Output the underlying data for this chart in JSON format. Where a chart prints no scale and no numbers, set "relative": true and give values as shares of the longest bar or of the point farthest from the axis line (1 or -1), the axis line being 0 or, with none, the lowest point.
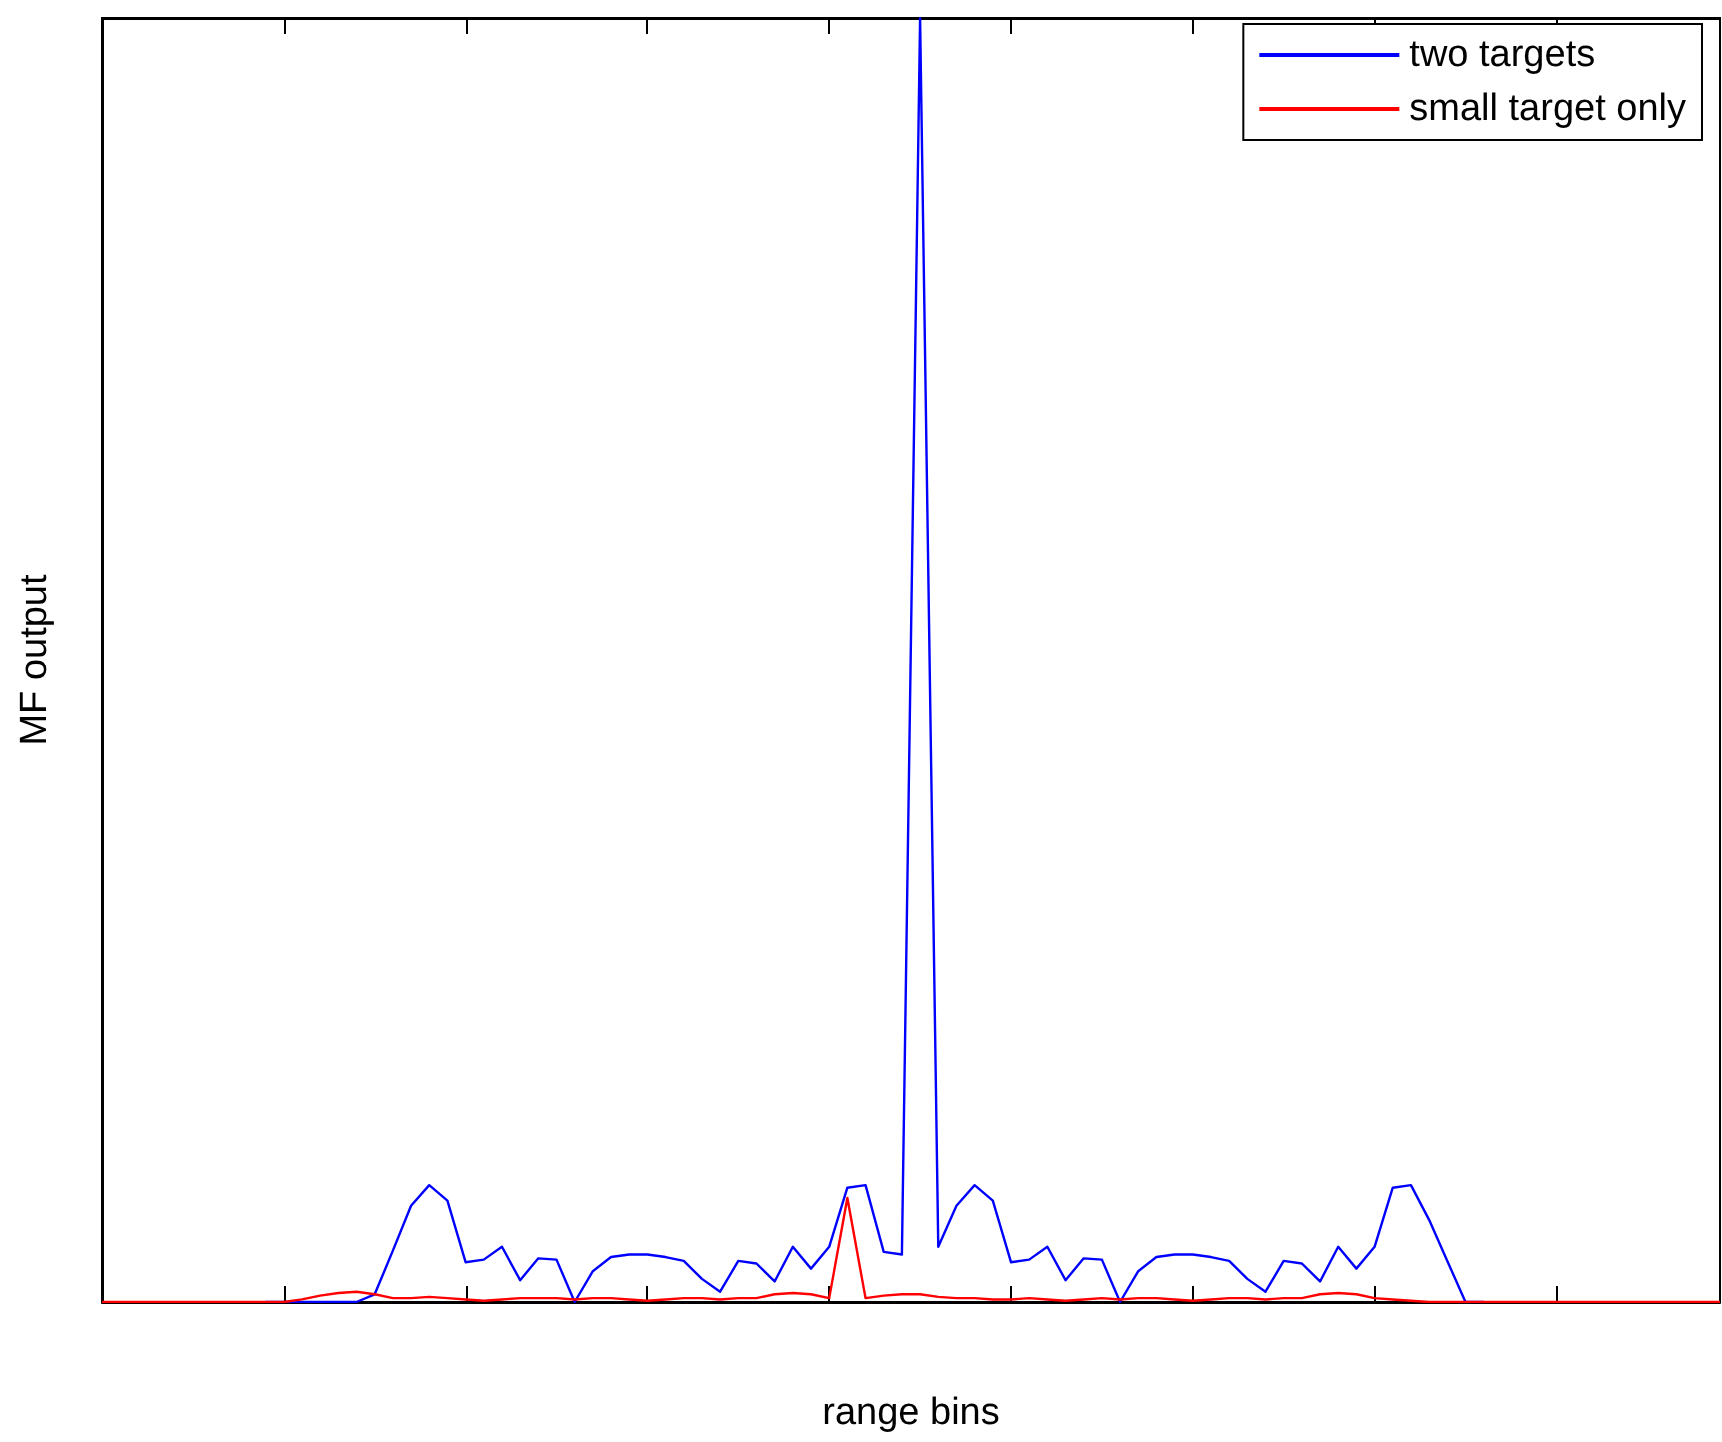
{
  "chart_data": {
    "type": "line",
    "relative": true,
    "xlabel": "range bins",
    "ylabel": "MF output",
    "legend": "top right",
    "tick_labels": false,
    "categories": [
      null,
      null,
      null,
      null,
      null,
      null,
      null,
      null,
      null,
      null,
      null,
      null,
      null,
      null,
      null,
      null,
      null,
      null,
      null,
      null,
      null,
      null,
      null,
      null,
      null,
      null,
      null,
      null,
      null,
      null,
      null,
      null,
      null,
      null,
      null,
      null,
      null,
      null,
      null,
      null,
      null,
      null,
      null,
      null,
      null,
      null,
      null,
      null,
      null,
      null,
      null,
      null,
      null,
      null,
      null,
      null,
      null,
      null,
      null,
      null,
      null,
      null,
      null,
      null,
      null,
      null,
      null,
      null,
      null,
      null,
      null,
      null,
      null,
      null,
      null,
      null,
      null,
      null,
      null,
      null,
      null,
      null,
      null,
      null,
      null,
      null,
      null,
      null,
      null,
      null
    ],
    "series": [
      {
        "name": "two targets",
        "color": "#0000ff",
        "values": [
          null,
          null,
          null,
          null,
          null,
          null,
          null,
          null,
          null,
          0,
          0,
          0,
          0,
          0,
          0,
          0.006,
          0.04,
          0.075,
          0.091,
          0.079,
          0.031,
          0.033,
          0.043,
          0.017,
          0.034,
          0.033,
          0,
          0.024,
          0.035,
          0.037,
          0.037,
          0.035,
          0.032,
          0.018,
          0.008,
          0.032,
          0.03,
          0.016,
          0.043,
          0.026,
          0.043,
          0.089,
          0.091,
          0.039,
          0.037,
          1,
          0.043,
          0.075,
          0.091,
          0.079,
          0.031,
          0.033,
          0.043,
          0.017,
          0.034,
          0.033,
          0,
          0.024,
          0.035,
          0.037,
          0.037,
          0.035,
          0.032,
          0.018,
          0.008,
          0.032,
          0.03,
          0.016,
          0.043,
          0.026,
          0.043,
          0.089,
          0.091,
          0.064,
          0.032,
          0,
          0,
          null,
          null,
          null,
          null,
          null,
          null,
          null,
          null,
          null,
          null,
          null,
          null,
          null
        ]
      },
      {
        "name": "small target only",
        "color": "#ff0000",
        "values": [
          0,
          0,
          0,
          0,
          0,
          0,
          0,
          0,
          0,
          0,
          0,
          0.002,
          0.005,
          0.007,
          0.008,
          0.006,
          0.003,
          0.003,
          0.004,
          0.003,
          0.002,
          0.001,
          0.002,
          0.003,
          0.003,
          0.003,
          0.002,
          0.003,
          0.003,
          0.002,
          0.001,
          0.002,
          0.003,
          0.003,
          0.002,
          0.003,
          0.003,
          0.006,
          0.007,
          0.006,
          0.003,
          0.081,
          0.003,
          0.005,
          0.006,
          0.006,
          0.004,
          0.003,
          0.003,
          0.002,
          0.002,
          0.003,
          0.002,
          0.001,
          0.002,
          0.003,
          0.002,
          0.003,
          0.003,
          0.002,
          0.001,
          0.002,
          0.003,
          0.003,
          0.002,
          0.003,
          0.003,
          0.006,
          0.007,
          0.006,
          0.003,
          0.002,
          0.001,
          0,
          0,
          0,
          0,
          0,
          0,
          0,
          0,
          0,
          0,
          0,
          0,
          0,
          0,
          0,
          0,
          0
        ]
      }
    ]
  }
}
